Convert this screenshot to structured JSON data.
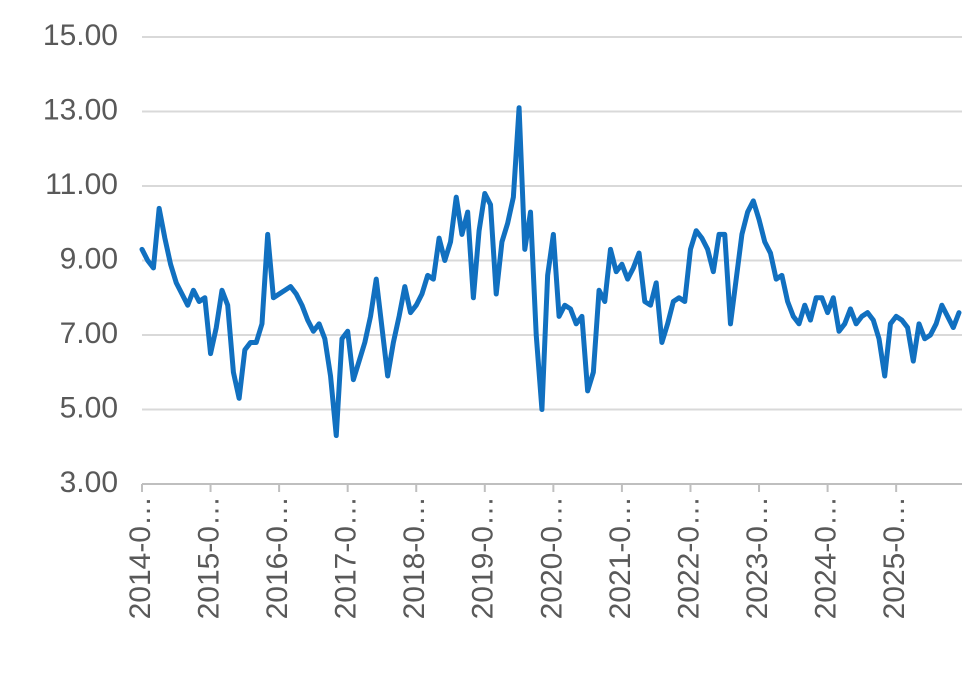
{
  "chart_data": {
    "type": "line",
    "categories": [
      "2014-0…",
      null,
      null,
      null,
      null,
      null,
      null,
      null,
      null,
      null,
      null,
      null,
      "2015-0…",
      null,
      null,
      null,
      null,
      null,
      null,
      null,
      null,
      null,
      null,
      null,
      "2016-0…",
      null,
      null,
      null,
      null,
      null,
      null,
      null,
      null,
      null,
      null,
      null,
      "2017-0…",
      null,
      null,
      null,
      null,
      null,
      null,
      null,
      null,
      null,
      null,
      null,
      "2018-0…",
      null,
      null,
      null,
      null,
      null,
      null,
      null,
      null,
      null,
      null,
      null,
      "2019-0…",
      null,
      null,
      null,
      null,
      null,
      null,
      null,
      null,
      null,
      null,
      null,
      "2020-0…",
      null,
      null,
      null,
      null,
      null,
      null,
      null,
      null,
      null,
      null,
      null,
      "2021-0…",
      null,
      null,
      null,
      null,
      null,
      null,
      null,
      null,
      null,
      null,
      null,
      "2022-0…",
      null,
      null,
      null,
      null,
      null,
      null,
      null,
      null,
      null,
      null,
      null,
      "2023-0…",
      null,
      null,
      null,
      null,
      null,
      null,
      null,
      null,
      null,
      null,
      null,
      "2024-0…",
      null,
      null,
      null,
      null,
      null,
      null,
      null,
      null,
      null,
      null,
      null,
      "2025-0…",
      null,
      null,
      null,
      null,
      null,
      null,
      null,
      null,
      null,
      null,
      null
    ],
    "values": [
      9.3,
      9.0,
      8.8,
      10.4,
      9.6,
      8.9,
      8.4,
      8.1,
      7.8,
      8.2,
      7.9,
      8.0,
      6.5,
      7.2,
      8.2,
      7.8,
      6.0,
      5.3,
      6.6,
      6.8,
      6.8,
      7.3,
      9.7,
      8.0,
      8.1,
      8.2,
      8.3,
      8.1,
      7.8,
      7.4,
      7.1,
      7.3,
      6.9,
      5.9,
      4.3,
      6.9,
      7.1,
      5.8,
      6.3,
      6.8,
      7.5,
      8.5,
      7.2,
      5.9,
      6.8,
      7.5,
      8.3,
      7.6,
      7.8,
      8.1,
      8.6,
      8.5,
      9.6,
      9.0,
      9.5,
      10.7,
      9.7,
      10.3,
      8.0,
      9.8,
      10.8,
      10.5,
      8.1,
      9.5,
      10.0,
      10.7,
      13.1,
      9.3,
      10.3,
      7.0,
      5.0,
      8.6,
      9.7,
      7.5,
      7.8,
      7.7,
      7.3,
      7.5,
      5.5,
      6.0,
      8.2,
      7.9,
      9.3,
      8.7,
      8.9,
      8.5,
      8.8,
      9.2,
      7.9,
      7.8,
      8.4,
      6.8,
      7.3,
      7.9,
      8.0,
      7.9,
      9.3,
      9.8,
      9.6,
      9.3,
      8.7,
      9.7,
      9.7,
      7.3,
      8.5,
      9.7,
      10.3,
      10.6,
      10.1,
      9.5,
      9.2,
      8.5,
      8.6,
      7.9,
      7.5,
      7.3,
      7.8,
      7.4,
      8.0,
      8.0,
      7.6,
      8.0,
      7.1,
      7.3,
      7.7,
      7.3,
      7.5,
      7.6,
      7.4,
      6.9,
      5.9,
      7.3,
      7.5,
      7.4,
      7.2,
      6.3,
      7.3,
      6.9,
      7.0,
      7.3,
      7.8,
      7.5,
      7.2,
      7.6
    ],
    "color": "#1170c0",
    "ylim": [
      3,
      15
    ],
    "yticks": [
      {
        "value": 3,
        "label": "3.00"
      },
      {
        "value": 5,
        "label": "5.00"
      },
      {
        "value": 7,
        "label": "7.00"
      },
      {
        "value": 9,
        "label": "9.00"
      },
      {
        "value": 11,
        "label": "11.00"
      },
      {
        "value": 13,
        "label": "13.00"
      },
      {
        "value": 15,
        "label": "15.00"
      }
    ],
    "grid": true
  }
}
